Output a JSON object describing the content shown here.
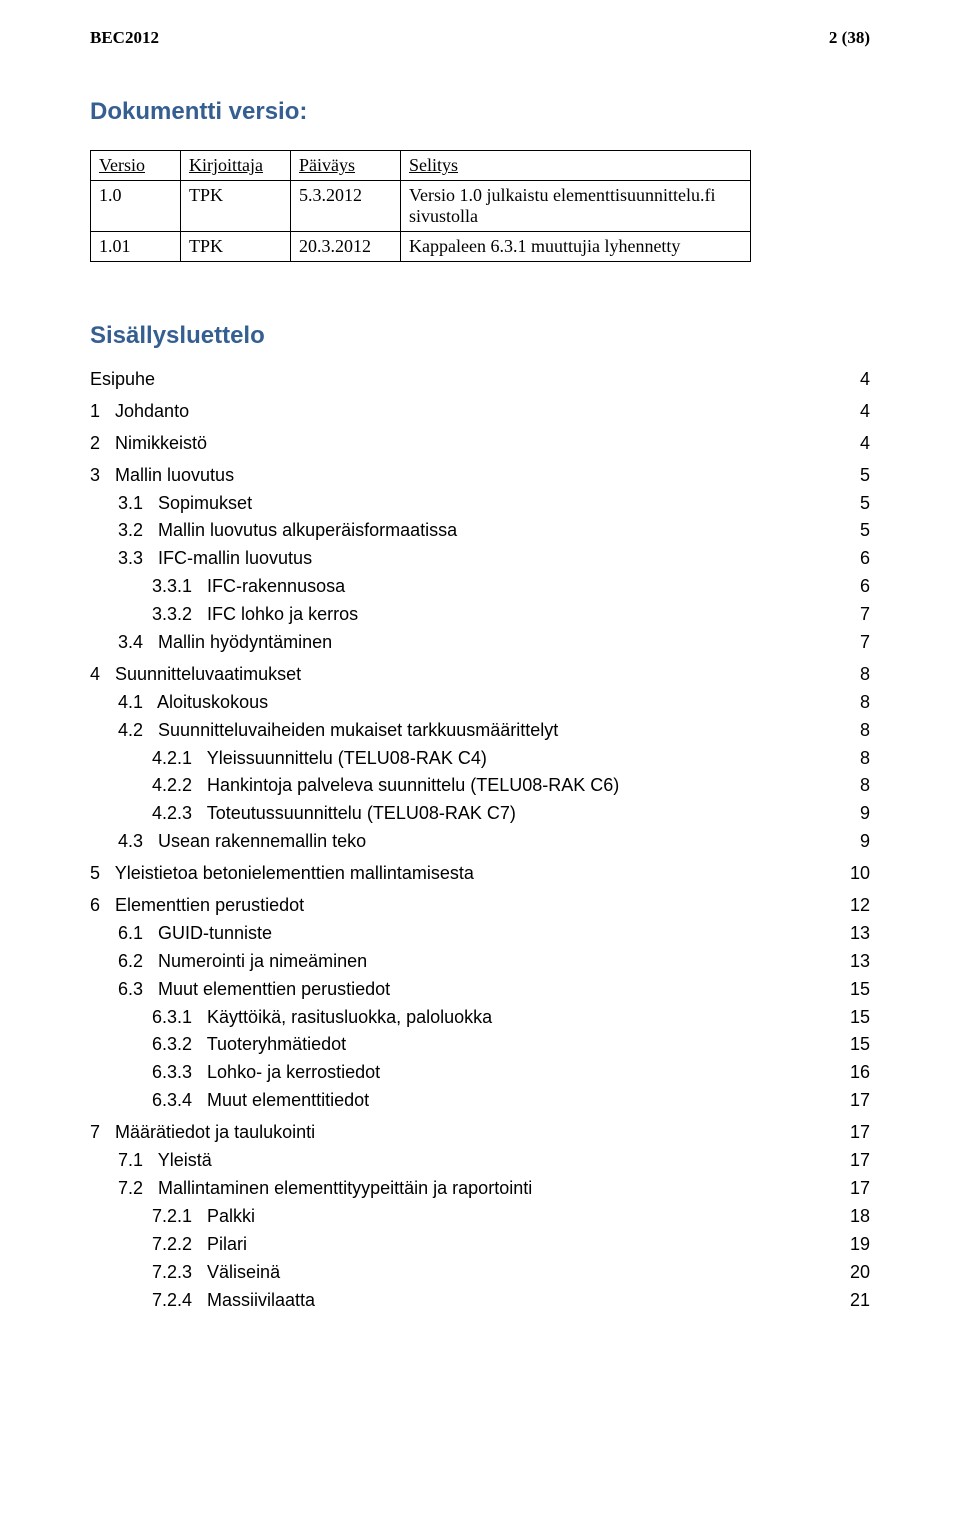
{
  "header": {
    "left": "BEC2012",
    "right": "2 (38)"
  },
  "version_section": {
    "heading": "Dokumentti versio:",
    "columns": [
      "Versio",
      "Kirjoittaja",
      "Päiväys",
      "Selitys"
    ],
    "rows": [
      [
        "1.0",
        "TPK",
        "5.3.2012",
        "Versio 1.0 julkaistu elementtisuunnittelu.fi sivustolla"
      ],
      [
        "1.01",
        "TPK",
        "20.3.2012",
        "Kappaleen 6.3.1 muuttujia lyhennetty"
      ]
    ]
  },
  "toc": {
    "heading": "Sisällysluettelo",
    "items": [
      {
        "level": 0,
        "label": "Esipuhe",
        "page": 4
      },
      {
        "level": 1,
        "label": "1   Johdanto",
        "page": 4
      },
      {
        "level": 1,
        "label": "2   Nimikkeistö",
        "page": 4
      },
      {
        "level": 1,
        "label": "3   Mallin luovutus",
        "page": 5
      },
      {
        "level": 2,
        "label": "3.1   Sopimukset",
        "page": 5
      },
      {
        "level": 2,
        "label": "3.2   Mallin luovutus alkuperäisformaatissa",
        "page": 5
      },
      {
        "level": 2,
        "label": "3.3   IFC-mallin luovutus",
        "page": 6
      },
      {
        "level": 3,
        "label": "3.3.1   IFC-rakennusosa",
        "page": 6
      },
      {
        "level": 3,
        "label": "3.3.2   IFC lohko ja kerros",
        "page": 7
      },
      {
        "level": 2,
        "label": "3.4   Mallin hyödyntäminen",
        "page": 7
      },
      {
        "level": 1,
        "label": "4   Suunnitteluvaatimukset",
        "page": 8
      },
      {
        "level": 2,
        "label": "4.1   Aloituskokous",
        "page": 8
      },
      {
        "level": 2,
        "label": "4.2   Suunnitteluvaiheiden mukaiset tarkkuusmäärittelyt",
        "page": 8
      },
      {
        "level": 3,
        "label": "4.2.1   Yleissuunnittelu (TELU08-RAK C4)",
        "page": 8
      },
      {
        "level": 3,
        "label": "4.2.2   Hankintoja palveleva suunnittelu (TELU08-RAK C6)",
        "page": 8
      },
      {
        "level": 3,
        "label": "4.2.3   Toteutussuunnittelu (TELU08-RAK C7)",
        "page": 9
      },
      {
        "level": 2,
        "label": "4.3   Usean rakennemallin teko",
        "page": 9
      },
      {
        "level": 1,
        "label": "5   Yleistietoa betonielementtien mallintamisesta",
        "page": 10
      },
      {
        "level": 1,
        "label": "6   Elementtien perustiedot",
        "page": 12
      },
      {
        "level": 2,
        "label": "6.1   GUID-tunniste",
        "page": 13
      },
      {
        "level": 2,
        "label": "6.2   Numerointi ja nimeäminen",
        "page": 13
      },
      {
        "level": 2,
        "label": "6.3   Muut elementtien perustiedot",
        "page": 15
      },
      {
        "level": 3,
        "label": "6.3.1   Käyttöikä, rasitusluokka, paloluokka",
        "page": 15
      },
      {
        "level": 3,
        "label": "6.3.2   Tuoteryhmätiedot",
        "page": 15
      },
      {
        "level": 3,
        "label": "6.3.3   Lohko- ja kerrostiedot",
        "page": 16
      },
      {
        "level": 3,
        "label": "6.3.4   Muut elementtitiedot",
        "page": 17
      },
      {
        "level": 1,
        "label": "7   Määrätiedot ja taulukointi",
        "page": 17
      },
      {
        "level": 2,
        "label": "7.1   Yleistä",
        "page": 17
      },
      {
        "level": 2,
        "label": "7.2   Mallintaminen elementtityypeittäin ja raportointi",
        "page": 17
      },
      {
        "level": 3,
        "label": "7.2.1   Palkki",
        "page": 18
      },
      {
        "level": 3,
        "label": "7.2.2   Pilari",
        "page": 19
      },
      {
        "level": 3,
        "label": "7.2.3   Väliseinä",
        "page": 20
      },
      {
        "level": 3,
        "label": "7.2.4   Massiivilaatta",
        "page": 21
      }
    ]
  },
  "colors": {
    "heading": "#365f91",
    "text": "#000000",
    "background": "#ffffff",
    "border": "#000000"
  },
  "fonts": {
    "body": "Times New Roman",
    "headings_and_toc": "Arial"
  }
}
